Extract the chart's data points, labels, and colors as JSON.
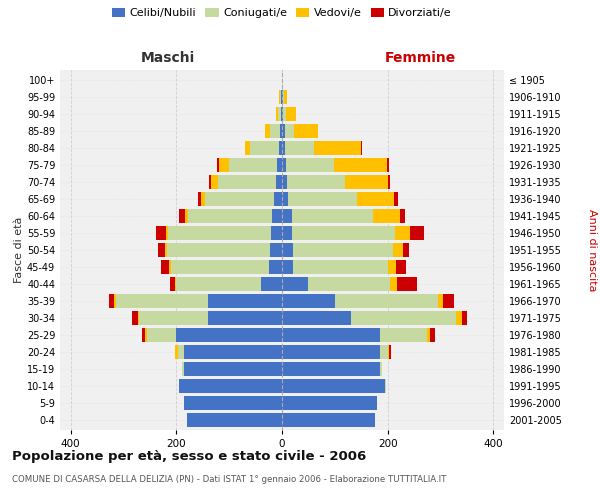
{
  "age_groups": [
    "100+",
    "95-99",
    "90-94",
    "85-89",
    "80-84",
    "75-79",
    "70-74",
    "65-69",
    "60-64",
    "55-59",
    "50-54",
    "45-49",
    "40-44",
    "35-39",
    "30-34",
    "25-29",
    "20-24",
    "15-19",
    "10-14",
    "5-9",
    "0-4"
  ],
  "birth_years": [
    "≤ 1905",
    "1906-1910",
    "1911-1915",
    "1916-1920",
    "1921-1925",
    "1926-1930",
    "1931-1935",
    "1936-1940",
    "1941-1945",
    "1946-1950",
    "1951-1955",
    "1956-1960",
    "1961-1965",
    "1966-1970",
    "1971-1975",
    "1976-1980",
    "1981-1985",
    "1986-1990",
    "1991-1995",
    "1996-2000",
    "2001-2005"
  ],
  "maschi": {
    "celibi": [
      0,
      2,
      2,
      4,
      5,
      10,
      12,
      15,
      18,
      20,
      22,
      25,
      40,
      140,
      140,
      200,
      185,
      185,
      195,
      185,
      180
    ],
    "coniugati": [
      0,
      2,
      5,
      18,
      55,
      90,
      110,
      130,
      160,
      195,
      195,
      185,
      160,
      175,
      130,
      55,
      12,
      5,
      0,
      0,
      0
    ],
    "vedovi": [
      0,
      2,
      5,
      10,
      10,
      20,
      12,
      8,
      5,
      5,
      5,
      3,
      2,
      2,
      3,
      5,
      5,
      0,
      0,
      0,
      0
    ],
    "divorziati": [
      0,
      0,
      0,
      0,
      0,
      3,
      5,
      5,
      12,
      18,
      12,
      15,
      10,
      10,
      10,
      5,
      0,
      0,
      0,
      0,
      0
    ]
  },
  "femmine": {
    "nubili": [
      0,
      2,
      2,
      5,
      5,
      8,
      10,
      12,
      18,
      18,
      20,
      20,
      50,
      100,
      130,
      185,
      185,
      185,
      195,
      180,
      175
    ],
    "coniugate": [
      0,
      2,
      5,
      18,
      55,
      90,
      110,
      130,
      155,
      195,
      190,
      180,
      155,
      195,
      200,
      90,
      15,
      5,
      2,
      0,
      0
    ],
    "vedove": [
      0,
      5,
      20,
      45,
      90,
      100,
      80,
      70,
      50,
      30,
      18,
      15,
      12,
      10,
      10,
      5,
      2,
      0,
      0,
      0,
      0
    ],
    "divorziate": [
      0,
      0,
      0,
      0,
      2,
      5,
      5,
      8,
      10,
      25,
      12,
      20,
      38,
      20,
      10,
      10,
      5,
      0,
      0,
      0,
      0
    ]
  },
  "colors": {
    "celibi": "#4472c4",
    "coniugati": "#c5d9a0",
    "vedovi": "#ffc000",
    "divorziati": "#cc0000"
  },
  "legend_labels": [
    "Celibi/Nubili",
    "Coniugati/e",
    "Vedovi/e",
    "Divorziati/e"
  ],
  "xlim": 420,
  "title": "Popolazione per età, sesso e stato civile - 2006",
  "subtitle": "COMUNE DI CASARSA DELLA DELIZIA (PN) - Dati ISTAT 1° gennaio 2006 - Elaborazione TUTTITALIA.IT",
  "ylabel_left": "Fasce di età",
  "ylabel_right": "Anni di nascita",
  "xlabel_left": "Maschi",
  "xlabel_right": "Femmine",
  "bg_color": "#f0f0f0",
  "grid_color": "#cccccc"
}
